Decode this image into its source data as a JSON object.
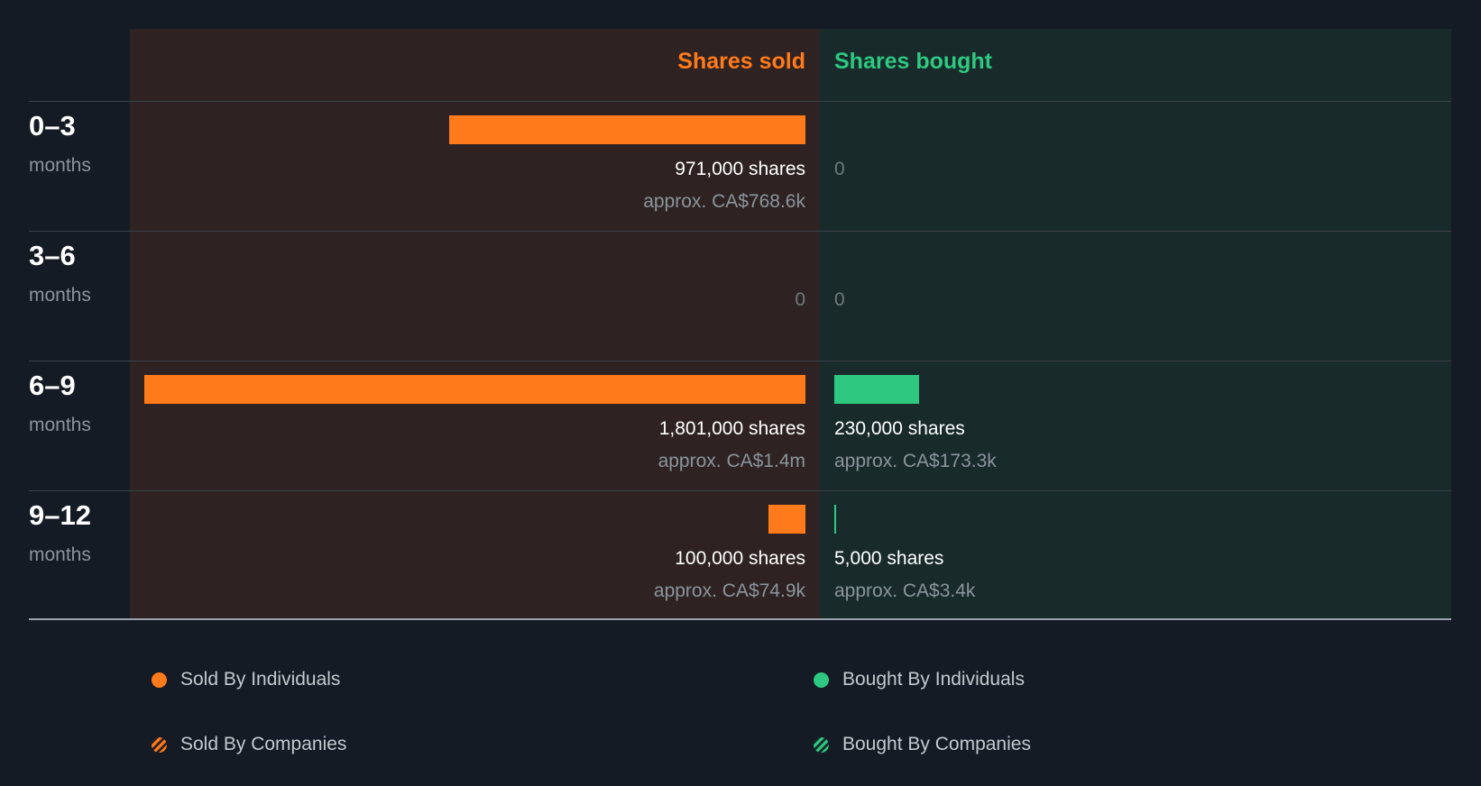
{
  "headers": {
    "sold": "Shares sold",
    "bought": "Shares bought"
  },
  "colors": {
    "sold": "#ff7a1a",
    "bought": "#2ec880",
    "background": "#151b24"
  },
  "chart_data": {
    "type": "bar",
    "orientation": "diverging-horizontal",
    "categories": [
      "0–3",
      "3–6",
      "6–9",
      "9–12"
    ],
    "category_unit": "months",
    "series": [
      {
        "name": "Shares sold",
        "values": [
          971000,
          0,
          1801000,
          100000
        ]
      },
      {
        "name": "Shares bought",
        "values": [
          0,
          0,
          230000,
          5000
        ]
      }
    ],
    "labels": {
      "sold": [
        "971,000 shares",
        "0",
        "1,801,000 shares",
        "100,000 shares"
      ],
      "bought": [
        "0",
        "0",
        "230,000 shares",
        "5,000 shares"
      ],
      "sold_value": [
        "approx. CA$768.6k",
        "",
        "approx. CA$1.4m",
        "approx. CA$74.9k"
      ],
      "bought_value": [
        "",
        "",
        "approx. CA$173.3k",
        "approx. CA$3.4k"
      ]
    },
    "legend": [
      "Sold By Individuals",
      "Bought By Individuals",
      "Sold By Companies",
      "Bought By Companies"
    ]
  }
}
